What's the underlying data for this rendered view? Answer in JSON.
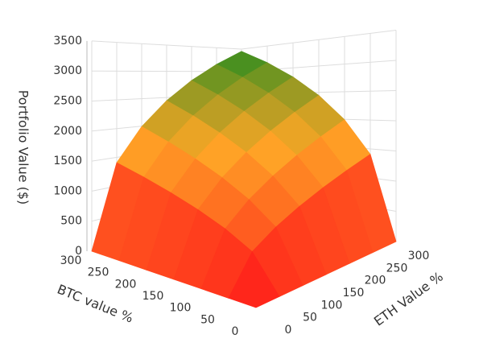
{
  "chart_data": {
    "type": "surface",
    "xlabel": "BTC value %",
    "ylabel": "ETH Value %",
    "zlabel": "Portfolio Value ($)",
    "x": [
      0,
      50,
      100,
      150,
      200,
      250,
      300
    ],
    "y": [
      0,
      50,
      100,
      150,
      200,
      250,
      300
    ],
    "z": [
      [
        0,
        0,
        0,
        0,
        0,
        0,
        0
      ],
      [
        0,
        575,
        813,
        996,
        1150,
        1286,
        1408
      ],
      [
        0,
        813,
        1150,
        1408,
        1626,
        1818,
        1992
      ],
      [
        0,
        996,
        1408,
        1725,
        1992,
        2227,
        2440
      ],
      [
        0,
        1150,
        1626,
        1992,
        2300,
        2571,
        2817
      ],
      [
        0,
        1286,
        1818,
        2227,
        2571,
        2875,
        3149
      ],
      [
        0,
        1408,
        1992,
        2440,
        2817,
        3149,
        3450
      ]
    ],
    "xlim": [
      0,
      300
    ],
    "ylim": [
      0,
      300
    ],
    "zlim": [
      0,
      3500
    ],
    "xticks": [
      0,
      50,
      100,
      150,
      200,
      250,
      300
    ],
    "yticks": [
      0,
      50,
      100,
      150,
      200,
      250,
      300
    ],
    "zticks": [
      0,
      500,
      1000,
      1500,
      2000,
      2500,
      3000,
      3500
    ],
    "colorscale": [
      "#ff1a1a",
      "#ffa726",
      "#1e8a1e"
    ],
    "grid": true
  }
}
